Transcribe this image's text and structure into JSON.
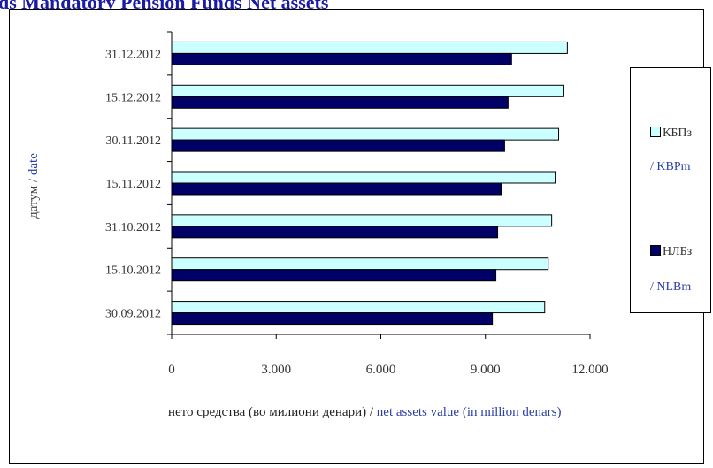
{
  "page_title": "ds Mandatory Pension Funds Net assets",
  "chart_data": {
    "type": "bar",
    "orientation": "horizontal",
    "categories": [
      "30.09.2012",
      "15.10.2012",
      "31.10.2012",
      "15.11.2012",
      "30.11.2012",
      "15.12.2012",
      "31.12.2012"
    ],
    "series": [
      {
        "name": "КБПз / KBPm",
        "color": "#ccffff",
        "values": [
          10700,
          10800,
          10900,
          11000,
          11100,
          11250,
          11350
        ]
      },
      {
        "name": "НЛБз / NLBm",
        "color": "#000066",
        "values": [
          9200,
          9300,
          9350,
          9450,
          9550,
          9650,
          9750
        ]
      }
    ],
    "xlim": [
      0,
      12000
    ],
    "xticks": [
      "0",
      "3.000",
      "6.000",
      "9.000",
      "12.000"
    ],
    "xticks_values": [
      0,
      3000,
      6000,
      9000,
      12000
    ],
    "xlabel_mk": "нето средства (во милиони денари) /",
    "xlabel_en": " net assets value (in million denars)",
    "ylabel_mk": "датум  /",
    "ylabel_en": " date",
    "grid": false,
    "legend_placement": "right"
  },
  "legend": {
    "items": [
      {
        "label": "КБПз",
        "sub": "/ KBPm",
        "color": "#ccffff"
      },
      {
        "label": "НЛБз",
        "sub": "/ NLBm",
        "color": "#000066"
      }
    ]
  }
}
